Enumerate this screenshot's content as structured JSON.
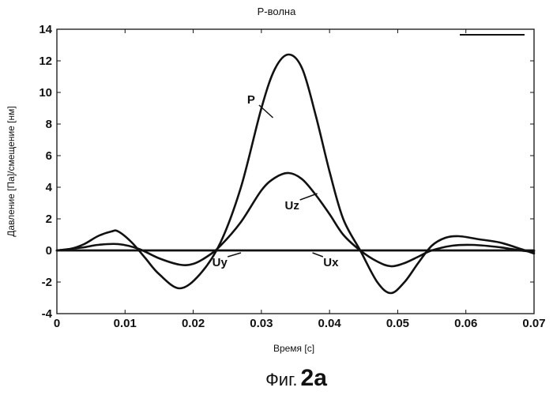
{
  "chart_data": {
    "type": "line",
    "title": "Р-волна",
    "xlabel": "Время [с]",
    "ylabel": "Давление [Па]/смещение [нм]",
    "xlim": [
      0,
      0.07
    ],
    "ylim": [
      -4,
      14
    ],
    "xticks": [
      0,
      0.01,
      0.02,
      0.03,
      0.04,
      0.05,
      0.06,
      0.07
    ],
    "xtick_labels": [
      "0",
      "0.01",
      "0.02",
      "0.03",
      "0.04",
      "0.05",
      "0.06",
      "0.07"
    ],
    "yticks": [
      -4,
      -2,
      0,
      2,
      4,
      6,
      8,
      10,
      12,
      14
    ],
    "ytick_labels": [
      "-4",
      "-2",
      "0",
      "2",
      "4",
      "6",
      "8",
      "10",
      "12",
      "14"
    ],
    "grid": false,
    "legend": "top-right",
    "series": [
      {
        "name": "P",
        "x": [
          0,
          0.002,
          0.004,
          0.006,
          0.008,
          0.009,
          0.011,
          0.013,
          0.015,
          0.018,
          0.021,
          0.024,
          0.027,
          0.03,
          0.032,
          0.034,
          0.036,
          0.038,
          0.04,
          0.042,
          0.0445,
          0.047,
          0.049,
          0.051,
          0.053,
          0.055,
          0.057,
          0.059,
          0.062,
          0.065,
          0.068,
          0.07
        ],
        "y": [
          0,
          0.1,
          0.4,
          0.9,
          1.2,
          1.2,
          0.5,
          -0.5,
          -1.5,
          -2.4,
          -1.5,
          0.5,
          4.0,
          9.0,
          11.5,
          12.4,
          11.5,
          8.5,
          5.0,
          2.0,
          0,
          -2.0,
          -2.7,
          -2.0,
          -0.8,
          0.3,
          0.8,
          0.9,
          0.7,
          0.5,
          0.1,
          -0.2
        ]
      },
      {
        "name": "Uz",
        "x": [
          0,
          0.002,
          0.004,
          0.006,
          0.009,
          0.012,
          0.015,
          0.018,
          0.02,
          0.022,
          0.024,
          0.027,
          0.03,
          0.032,
          0.034,
          0.036,
          0.038,
          0.04,
          0.042,
          0.0445,
          0.047,
          0.049,
          0.051,
          0.053,
          0.055,
          0.058,
          0.061,
          0.065,
          0.068,
          0.07
        ],
        "y": [
          0,
          0.1,
          0.2,
          0.35,
          0.4,
          0.1,
          -0.5,
          -0.9,
          -0.85,
          -0.4,
          0.3,
          1.8,
          3.8,
          4.6,
          4.9,
          4.5,
          3.5,
          2.3,
          1.0,
          0,
          -0.7,
          -1.0,
          -0.8,
          -0.4,
          0,
          0.3,
          0.35,
          0.2,
          0,
          -0.1
        ]
      },
      {
        "name": "Uy",
        "x": [
          0,
          0.07
        ],
        "y": [
          0,
          0
        ]
      },
      {
        "name": "Ux",
        "x": [
          0,
          0.07
        ],
        "y": [
          0,
          0
        ]
      }
    ],
    "annotations": [
      {
        "text": "P",
        "x": 0.0285,
        "y": 9.3,
        "arrow_to_x": 0.0317,
        "arrow_to_y": 8.4
      },
      {
        "text": "Uz",
        "x": 0.0345,
        "y": 2.6,
        "arrow_to_x": 0.0382,
        "arrow_to_y": 3.6
      },
      {
        "text": "Uy",
        "x": 0.0239,
        "y": -1.0,
        "arrow_to_x": 0.027,
        "arrow_to_y": -0.15
      },
      {
        "text": "Ux",
        "x": 0.0402,
        "y": -1.0,
        "arrow_to_x": 0.0375,
        "arrow_to_y": -0.15
      }
    ]
  },
  "caption": {
    "prefix": "Фиг.",
    "number": "2a"
  }
}
